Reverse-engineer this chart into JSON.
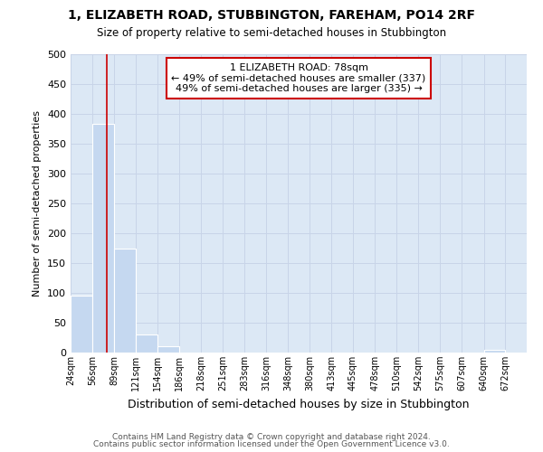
{
  "title1": "1, ELIZABETH ROAD, STUBBINGTON, FAREHAM, PO14 2RF",
  "title2": "Size of property relative to semi-detached houses in Stubbington",
  "xlabel": "Distribution of semi-detached houses by size in Stubbington",
  "ylabel": "Number of semi-detached properties",
  "footer1": "Contains HM Land Registry data © Crown copyright and database right 2024.",
  "footer2": "Contains public sector information licensed under the Open Government Licence v3.0.",
  "annotation_line1": "1 ELIZABETH ROAD: 78sqm",
  "annotation_line2": "← 49% of semi-detached houses are smaller (337)",
  "annotation_line3": "49% of semi-detached houses are larger (335) →",
  "property_size": 78,
  "bar_left_edges": [
    24,
    56,
    89,
    121,
    154,
    186,
    218,
    251,
    283,
    316,
    348,
    380,
    413,
    445,
    478,
    510,
    542,
    575,
    607,
    640,
    672
  ],
  "bar_heights": [
    95,
    383,
    175,
    30,
    10,
    0,
    0,
    0,
    0,
    0,
    0,
    0,
    0,
    0,
    0,
    0,
    0,
    0,
    0,
    5,
    0
  ],
  "bar_color": "#c5d8f0",
  "grid_color": "#c8d4e8",
  "background_color": "#dce8f5",
  "red_line_color": "#cc0000",
  "annotation_box_color": "#cc0000",
  "ylim": [
    0,
    500
  ],
  "yticks": [
    0,
    50,
    100,
    150,
    200,
    250,
    300,
    350,
    400,
    450,
    500
  ],
  "tick_labels": [
    "24sqm",
    "56sqm",
    "89sqm",
    "121sqm",
    "154sqm",
    "186sqm",
    "218sqm",
    "251sqm",
    "283sqm",
    "316sqm",
    "348sqm",
    "380sqm",
    "413sqm",
    "445sqm",
    "478sqm",
    "510sqm",
    "542sqm",
    "575sqm",
    "607sqm",
    "640sqm",
    "672sqm"
  ]
}
